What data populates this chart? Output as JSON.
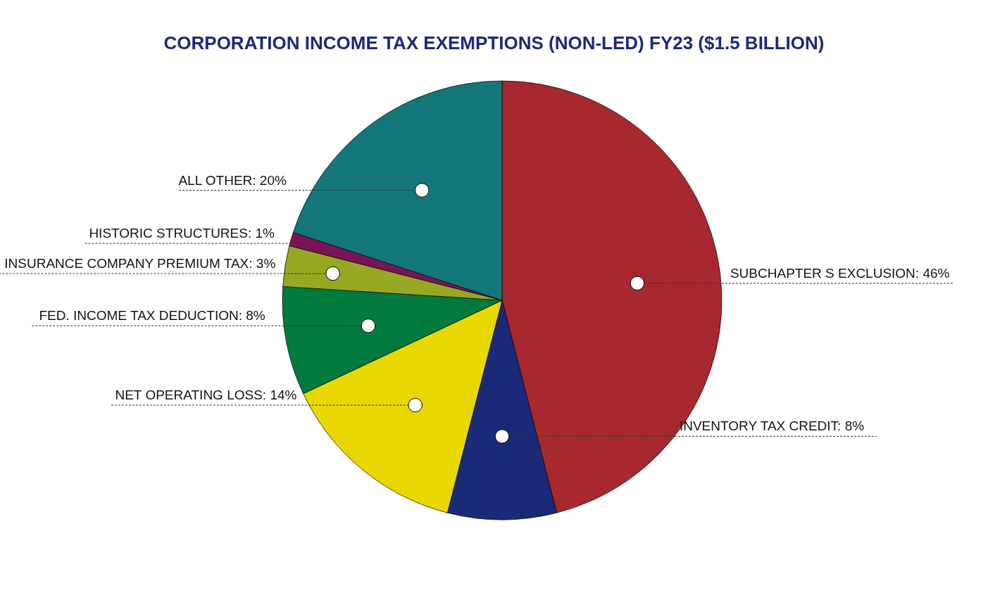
{
  "chart_data": {
    "type": "pie",
    "title": "CORPORATION INCOME TAX EXEMPTIONS (NON-LED) FY23 ($1.5 BILLION)",
    "categories": [
      "SUBCHAPTER S EXCLUSION",
      "INVENTORY TAX CREDIT",
      "NET OPERATING LOSS",
      "FED. INCOME TAX DEDUCTION",
      "INSURANCE COMPANY PREMIUM TAX",
      "HISTORIC STRUCTURES",
      "ALL OTHER"
    ],
    "values": [
      46,
      8,
      14,
      8,
      3,
      1,
      20
    ],
    "colors": [
      "#a8282f",
      "#1a2a78",
      "#e8d800",
      "#007a3d",
      "#97a822",
      "#7a1458",
      "#13777a"
    ],
    "value_labels": [
      "46%",
      "8%",
      "14%",
      "8%",
      "3%",
      "1%",
      "20%"
    ]
  }
}
